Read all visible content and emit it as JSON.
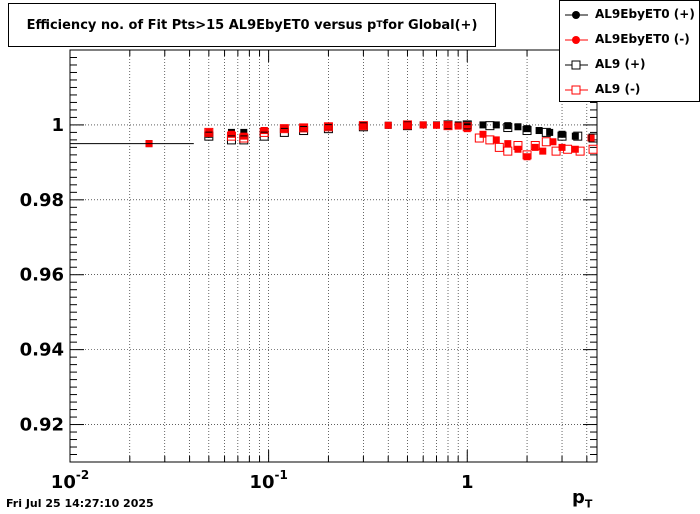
{
  "title_main": "Efficiency no. of Fit Pts>15 AL9EbyET0 versus p",
  "title_sub": "T",
  "title_tail": " for Global(+)",
  "timestamp": "Fri Jul 25 14:27:10 2025",
  "xaxis": {
    "label": "p",
    "label_sub": "T"
  },
  "legend": [
    {
      "label": "AL9EbyET0 (+)",
      "color": "#000000",
      "marker": "filled-circle"
    },
    {
      "label": "AL9EbyET0 (-)",
      "color": "#ff0000",
      "marker": "filled-circle"
    },
    {
      "label": "AL9 (+)",
      "color": "#000000",
      "marker": "open-square"
    },
    {
      "label": "AL9 (-)",
      "color": "#ff0000",
      "marker": "open-square"
    }
  ],
  "chart_data": {
    "type": "scatter",
    "title": "Efficiency no. of Fit Pts>15 AL9EbyET0 versus pT for Global(+)",
    "xlabel": "pT",
    "ylabel": "",
    "xscale": "log",
    "xlim": [
      0.01,
      4.5
    ],
    "ylim": [
      0.91,
      1.02
    ],
    "grid": true,
    "legend_position": "top-right",
    "x_tick_labels": [
      "10^-2",
      "10^-1",
      "1"
    ],
    "y_ticks": [
      0.92,
      0.94,
      0.96,
      0.98,
      1.0
    ],
    "y_tick_labels": [
      "0.92",
      "0.94",
      "0.96",
      "0.98",
      "1"
    ],
    "series": [
      {
        "name": "AL9EbyET0 (+)",
        "color": "#000000",
        "marker": "filled-circle",
        "x": [
          0.025,
          0.05,
          0.065,
          0.075,
          0.095,
          0.12,
          0.15,
          0.2,
          0.3,
          0.4,
          0.5,
          0.6,
          0.7,
          0.8,
          0.9,
          1.0,
          1.2,
          1.4,
          1.6,
          1.8,
          2.0,
          2.3,
          2.6,
          3.0,
          3.5,
          4.2
        ],
        "y": [
          0.995,
          0.9975,
          0.998,
          0.998,
          0.9985,
          0.999,
          0.9992,
          0.9995,
          0.9998,
          0.9999,
          1.0,
          1.0,
          1.0,
          1.0,
          1.0,
          1.0,
          1.0,
          1.0,
          0.9998,
          0.9995,
          0.999,
          0.9985,
          0.998,
          0.9975,
          0.997,
          0.9965
        ]
      },
      {
        "name": "AL9EbyET0 (-)",
        "color": "#ff0000",
        "marker": "filled-circle",
        "x": [
          0.025,
          0.05,
          0.065,
          0.075,
          0.095,
          0.12,
          0.15,
          0.2,
          0.3,
          0.4,
          0.5,
          0.6,
          0.7,
          0.8,
          0.9,
          1.0,
          1.2,
          1.4,
          1.6,
          1.8,
          2.0,
          2.2,
          2.4,
          2.7,
          3.0,
          3.5,
          4.2
        ],
        "y": [
          0.995,
          0.998,
          0.9975,
          0.997,
          0.9985,
          0.999,
          0.9993,
          0.9996,
          0.9998,
          0.9999,
          1.0,
          1.0,
          0.9999,
          0.9998,
          0.9997,
          0.999,
          0.9975,
          0.996,
          0.995,
          0.9935,
          0.9915,
          0.994,
          0.993,
          0.9955,
          0.994,
          0.9935,
          0.9965
        ]
      },
      {
        "name": "AL9 (+)",
        "color": "#000000",
        "marker": "open-square",
        "x": [
          0.05,
          0.065,
          0.075,
          0.095,
          0.12,
          0.15,
          0.2,
          0.3,
          0.5,
          0.8,
          1.0,
          1.3,
          1.6,
          2.0,
          2.5,
          3.0,
          3.6,
          4.3
        ],
        "y": [
          0.997,
          0.996,
          0.996,
          0.997,
          0.998,
          0.9985,
          0.999,
          0.9995,
          0.9998,
          1.0,
          1.0,
          0.9998,
          0.9993,
          0.9985,
          0.998,
          0.997,
          0.997,
          0.9965
        ]
      },
      {
        "name": "AL9 (-)",
        "color": "#ff0000",
        "marker": "open-square",
        "x": [
          0.05,
          0.065,
          0.075,
          0.095,
          0.12,
          0.15,
          0.2,
          0.3,
          0.5,
          0.8,
          1.0,
          1.15,
          1.3,
          1.45,
          1.6,
          1.8,
          2.0,
          2.2,
          2.5,
          2.8,
          3.2,
          3.7,
          4.3
        ],
        "y": [
          0.998,
          0.997,
          0.9965,
          0.998,
          0.999,
          0.9992,
          0.9995,
          0.9998,
          1.0,
          0.9998,
          0.9995,
          0.9965,
          0.996,
          0.994,
          0.993,
          0.9945,
          0.992,
          0.9945,
          0.9955,
          0.993,
          0.9935,
          0.993,
          0.9935
        ]
      }
    ]
  }
}
